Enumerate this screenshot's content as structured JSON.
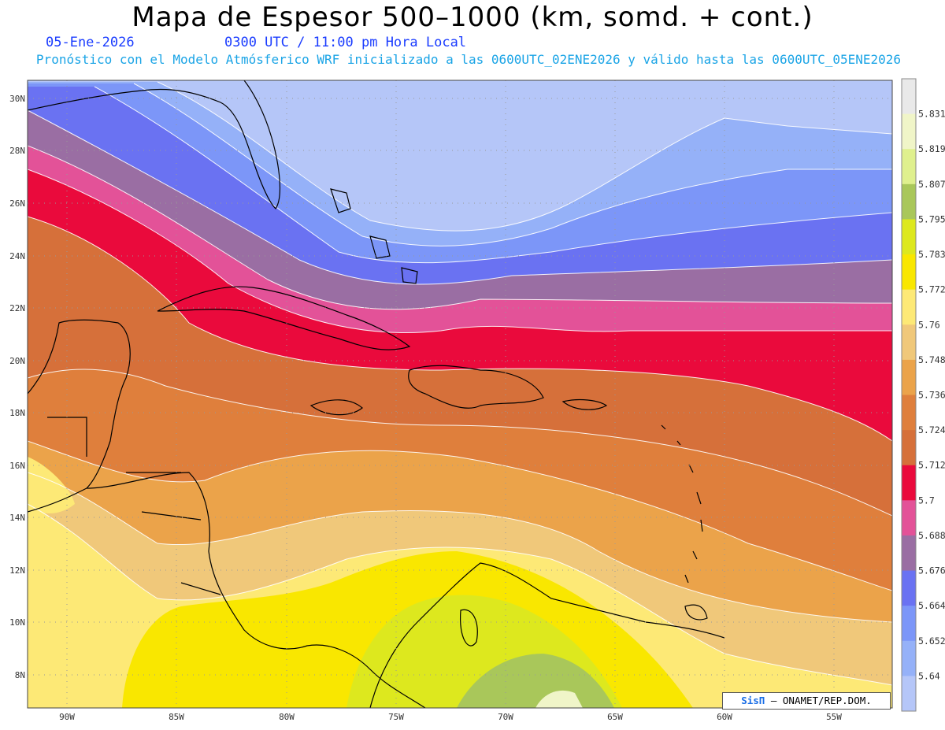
{
  "header": {
    "title": "Mapa de Espesor 500–1000 (km, somd. + cont.)",
    "date": "05-Ene-2026",
    "time": "0300 UTC / 11:00 pm Hora Local",
    "subtitle": "Pronóstico con el Modelo Atmósferico WRF inicializado a las 0600UTC_02ENE2026 y válido hasta las  0600UTC_05ENE2026"
  },
  "map": {
    "lat_labels": [
      "30N",
      "28N",
      "26N",
      "24N",
      "22N",
      "20N",
      "18N",
      "16N",
      "14N",
      "12N",
      "10N",
      "8N"
    ],
    "lon_labels": [
      "90W",
      "85W",
      "80W",
      "75W",
      "70W",
      "65W",
      "60W",
      "55W"
    ]
  },
  "colorbar": {
    "levels": [
      "5.831",
      "5.819",
      "5.807",
      "5.795",
      "5.783",
      "5.772",
      "5.76",
      "5.748",
      "5.736",
      "5.724",
      "5.712",
      "5.7",
      "5.688",
      "5.676",
      "5.664",
      "5.652",
      "5.64"
    ],
    "colors": [
      "#e9e9e9",
      "#f0f5c8",
      "#dff08e",
      "#a9c75a",
      "#dde81e",
      "#f9e700",
      "#fde976",
      "#f0c87a",
      "#eba34a",
      "#df7f3c",
      "#d6703a",
      "#ea0a3c",
      "#e35298",
      "#9a6ea3",
      "#6a72f2",
      "#7c96f8",
      "#95b1f8",
      "#b5c6f8"
    ]
  },
  "credit": {
    "brand": "SisΠ",
    "text": "– ONAMET/REP.DOM."
  }
}
